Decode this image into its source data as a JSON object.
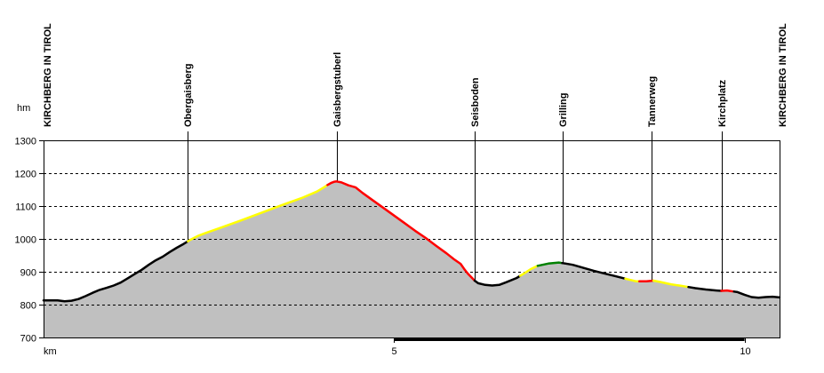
{
  "chart_data": {
    "type": "area",
    "title": "",
    "xlabel": "km",
    "ylabel": "hm",
    "xlim": [
      0,
      10.5
    ],
    "ylim": [
      700,
      1300
    ],
    "x_ticks": [
      {
        "value": 5,
        "label": "5"
      },
      {
        "value": 10,
        "label": "10"
      }
    ],
    "y_ticks": [
      700,
      800,
      900,
      1000,
      1100,
      1200,
      1300
    ],
    "grid": true,
    "colors": {
      "fill": "#c0c0c0",
      "flat": "#000000",
      "moderate": "#ffff00",
      "steep": "#ff0000",
      "downhill_easy": "#008000",
      "grid": "#000000"
    },
    "waypoints": [
      {
        "name": "KIRCHBERG IN TIROL",
        "km": 0.0
      },
      {
        "name": "Obergaisberg",
        "km": 2.06
      },
      {
        "name": "Gaisbergstuberl",
        "km": 4.18
      },
      {
        "name": "Seisboden",
        "km": 6.15
      },
      {
        "name": "Grilling",
        "km": 7.4
      },
      {
        "name": "Tannerweg",
        "km": 8.68
      },
      {
        "name": "Kirchplatz",
        "km": 9.67
      },
      {
        "name": "KIRCHBERG IN TIROL",
        "km": 10.5
      }
    ],
    "series": [
      {
        "points": [
          [
            0.0,
            813
          ],
          [
            0.2,
            813
          ],
          [
            0.3,
            810
          ],
          [
            0.4,
            812
          ],
          [
            0.5,
            817
          ],
          [
            0.6,
            826
          ],
          [
            0.7,
            836
          ],
          [
            0.8,
            845
          ],
          [
            0.9,
            851
          ],
          [
            1.0,
            858
          ],
          [
            1.1,
            867
          ],
          [
            1.2,
            880
          ],
          [
            1.3,
            893
          ],
          [
            1.4,
            906
          ],
          [
            1.5,
            921
          ],
          [
            1.6,
            935
          ],
          [
            1.7,
            946
          ],
          [
            1.8,
            960
          ],
          [
            1.9,
            973
          ],
          [
            2.0,
            985
          ],
          [
            2.1,
            998
          ],
          [
            2.2,
            1009
          ],
          [
            2.3,
            1017
          ],
          [
            2.5,
            1032
          ],
          [
            2.8,
            1055
          ],
          [
            3.1,
            1079
          ],
          [
            3.4,
            1103
          ],
          [
            3.7,
            1126
          ],
          [
            3.9,
            1144
          ],
          [
            4.0,
            1157
          ],
          [
            4.05,
            1164
          ],
          [
            4.1,
            1170
          ],
          [
            4.15,
            1174
          ],
          [
            4.18,
            1175
          ],
          [
            4.25,
            1172
          ],
          [
            4.35,
            1163
          ],
          [
            4.45,
            1157
          ],
          [
            4.55,
            1140
          ],
          [
            4.7,
            1117
          ],
          [
            4.85,
            1094
          ],
          [
            5.0,
            1071
          ],
          [
            5.15,
            1048
          ],
          [
            5.3,
            1025
          ],
          [
            5.45,
            1003
          ],
          [
            5.6,
            979
          ],
          [
            5.75,
            956
          ],
          [
            5.85,
            939
          ],
          [
            5.95,
            924
          ],
          [
            6.0,
            909
          ],
          [
            6.05,
            895
          ],
          [
            6.1,
            884
          ],
          [
            6.15,
            873
          ],
          [
            6.2,
            865
          ],
          [
            6.3,
            860
          ],
          [
            6.4,
            858
          ],
          [
            6.5,
            860
          ],
          [
            6.6,
            868
          ],
          [
            6.75,
            881
          ],
          [
            6.85,
            894
          ],
          [
            6.95,
            908
          ],
          [
            7.05,
            918
          ],
          [
            7.2,
            925
          ],
          [
            7.35,
            928
          ],
          [
            7.45,
            925
          ],
          [
            7.55,
            921
          ],
          [
            7.7,
            912
          ],
          [
            7.85,
            903
          ],
          [
            8.0,
            895
          ],
          [
            8.15,
            887
          ],
          [
            8.3,
            879
          ],
          [
            8.45,
            871
          ],
          [
            8.6,
            871
          ],
          [
            8.7,
            873
          ],
          [
            8.8,
            869
          ],
          [
            8.95,
            862
          ],
          [
            9.1,
            857
          ],
          [
            9.3,
            850
          ],
          [
            9.45,
            846
          ],
          [
            9.6,
            843
          ],
          [
            9.67,
            842
          ],
          [
            9.75,
            843
          ],
          [
            9.9,
            838
          ],
          [
            10.0,
            830
          ],
          [
            10.1,
            823
          ],
          [
            10.2,
            821
          ],
          [
            10.3,
            823
          ],
          [
            10.4,
            824
          ],
          [
            10.5,
            822
          ]
        ],
        "segments": [
          {
            "from": 0.0,
            "to": 2.06,
            "color": "flat"
          },
          {
            "from": 2.06,
            "to": 4.05,
            "color": "moderate"
          },
          {
            "from": 4.05,
            "to": 6.15,
            "color": "steep"
          },
          {
            "from": 6.15,
            "to": 6.8,
            "color": "flat"
          },
          {
            "from": 6.8,
            "to": 7.05,
            "color": "moderate"
          },
          {
            "from": 7.05,
            "to": 7.4,
            "color": "downhill_easy"
          },
          {
            "from": 7.4,
            "to": 8.3,
            "color": "flat"
          },
          {
            "from": 8.3,
            "to": 8.5,
            "color": "moderate"
          },
          {
            "from": 8.5,
            "to": 8.7,
            "color": "steep"
          },
          {
            "from": 8.7,
            "to": 9.2,
            "color": "moderate"
          },
          {
            "from": 9.2,
            "to": 9.67,
            "color": "flat"
          },
          {
            "from": 9.67,
            "to": 9.85,
            "color": "steep"
          },
          {
            "from": 9.85,
            "to": 10.5,
            "color": "flat"
          }
        ]
      }
    ]
  }
}
